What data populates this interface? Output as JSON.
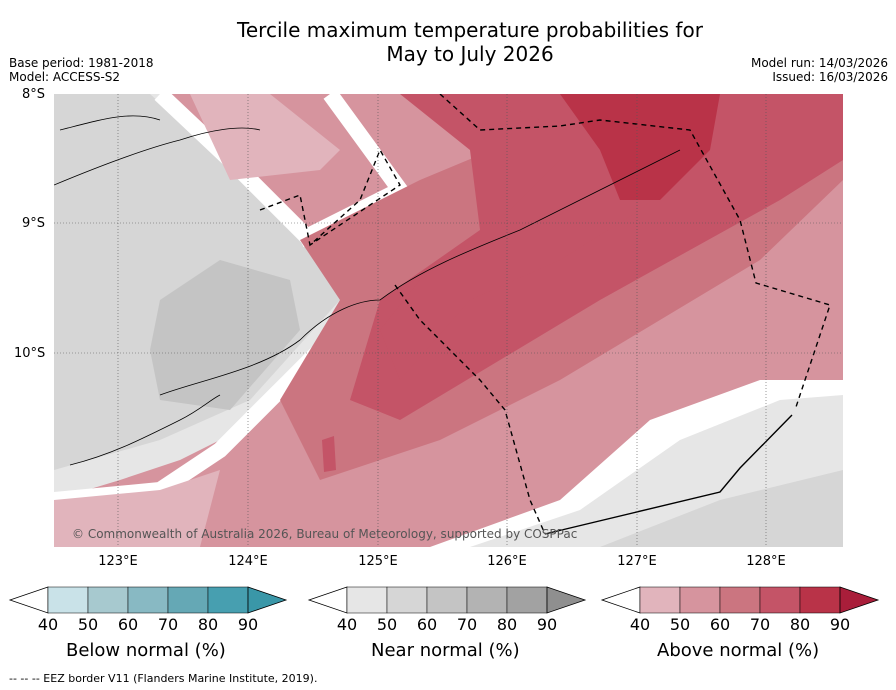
{
  "title": {
    "line1": "Tercile maximum temperature probabilities for",
    "line2": "May to July 2026"
  },
  "meta_left": {
    "base_period": "Base period: 1981-2018",
    "model": "Model: ACCESS-S2"
  },
  "meta_right": {
    "model_run": "Model run: 14/03/2026",
    "issued": "Issued: 16/03/2026"
  },
  "map": {
    "lat_labels": [
      "8°S",
      "9°S",
      "10°S"
    ],
    "lon_labels": [
      "123°E",
      "124°E",
      "125°E",
      "126°E",
      "127°E",
      "128°E"
    ],
    "copyright": "© Commonwealth of Australia 2026, Bureau of Meteorology, supported by COSPPac"
  },
  "colorbars": [
    {
      "label": "Below normal (%)",
      "ticks": [
        "40",
        "50",
        "60",
        "70",
        "80",
        "90"
      ],
      "colors": [
        "#c9e2e8",
        "#a7c9cf",
        "#88b9c3",
        "#65a8b5",
        "#479fb0",
        "#3a97a8"
      ]
    },
    {
      "label": "Near normal (%)",
      "ticks": [
        "40",
        "50",
        "60",
        "70",
        "80",
        "90"
      ],
      "colors": [
        "#e6e6e6",
        "#d6d6d6",
        "#c4c4c4",
        "#b3b3b3",
        "#a2a2a2",
        "#8f8f8f"
      ]
    },
    {
      "label": "Above normal (%)",
      "ticks": [
        "40",
        "50",
        "60",
        "70",
        "80",
        "90"
      ],
      "colors": [
        "#e1b4bc",
        "#d6949e",
        "#cb7580",
        "#c45467",
        "#b93348",
        "#a91e3a"
      ]
    }
  ],
  "footnote": "--  --  -- EEZ border V11 (Flanders Marine Institute, 2019)."
}
